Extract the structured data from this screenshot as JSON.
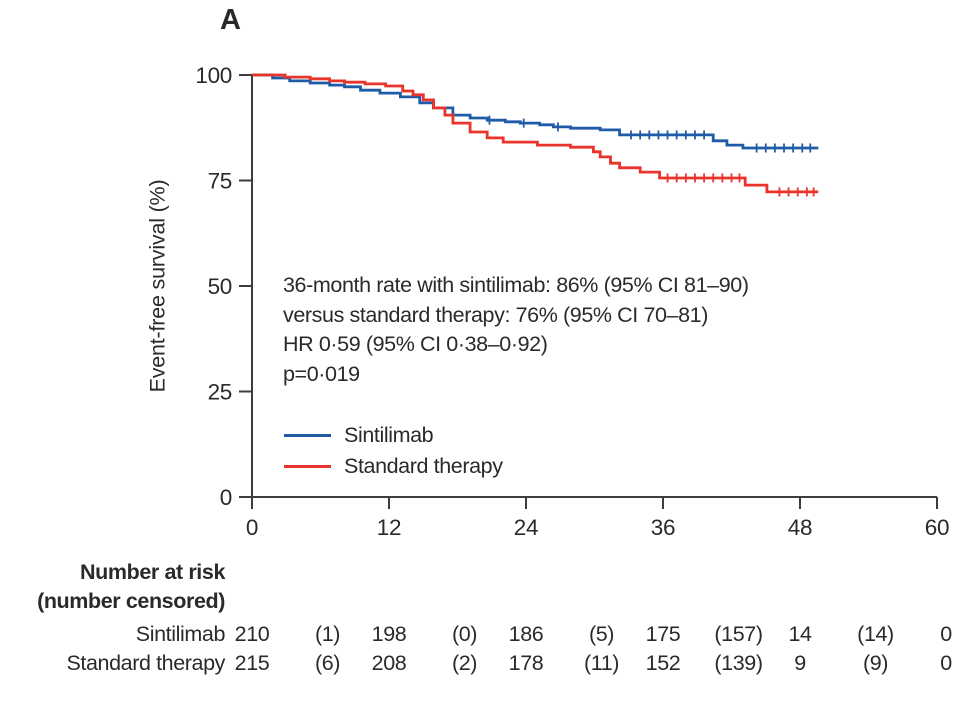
{
  "panel_label": "A",
  "colors": {
    "text": "#2b2a29",
    "axis": "#3d3d3c",
    "background": "#ffffff",
    "sintilimab_blue": "#1f5ba7",
    "standard_red": "#e8342b"
  },
  "chart_data": {
    "type": "line",
    "subtype": "kaplan-meier-step",
    "title": "A",
    "xlabel": "",
    "ylabel": "Event-free survival (%)",
    "xlim": [
      0,
      60
    ],
    "ylim": [
      0,
      100
    ],
    "xticks": [
      0,
      12,
      24,
      36,
      48,
      60
    ],
    "yticks": [
      100,
      75,
      50,
      25,
      0
    ],
    "grid": false,
    "legend_position": "inside-lower-left",
    "annotation": [
      "36-month rate with sintilimab: 86% (95% CI 81–90)",
      "versus standard therapy: 76% (95% CI 70–81)",
      "HR 0·59 (95% CI 0·38–0·92)",
      "p=0·019"
    ],
    "series": [
      {
        "name": "Sintilimab",
        "color": "#1f5ba7",
        "end_t": 49.6,
        "points": [
          [
            0,
            100
          ],
          [
            1.8,
            99.3
          ],
          [
            3.3,
            98.6
          ],
          [
            5.1,
            98.1
          ],
          [
            6.8,
            97.6
          ],
          [
            8.1,
            97.2
          ],
          [
            9.5,
            96.4
          ],
          [
            11.2,
            95.7
          ],
          [
            13,
            94.8
          ],
          [
            14.7,
            93.4
          ],
          [
            15.9,
            92.2
          ],
          [
            17.6,
            90.5
          ],
          [
            19.1,
            89.8
          ],
          [
            20.6,
            89.3
          ],
          [
            22.2,
            88.9
          ],
          [
            23.5,
            88.6
          ],
          [
            25.2,
            88.2
          ],
          [
            26.4,
            87.7
          ],
          [
            27.9,
            87.4
          ],
          [
            30.5,
            87
          ],
          [
            32.2,
            85.8
          ],
          [
            40.4,
            84.4
          ],
          [
            41.6,
            83.4
          ],
          [
            43,
            82.7
          ]
        ],
        "censor_ticks": [
          20.8,
          23.8,
          26.8,
          33.2,
          34,
          34.8,
          35.6,
          36.4,
          37.2,
          38,
          38.8,
          39.6,
          44.2,
          45,
          45.8,
          46.6,
          47.4,
          48.2,
          48.9
        ]
      },
      {
        "name": "Standard therapy",
        "color": "#e8342b",
        "end_t": 49.6,
        "points": [
          [
            0,
            100
          ],
          [
            2.9,
            99.5
          ],
          [
            5.1,
            99.1
          ],
          [
            6.8,
            98.6
          ],
          [
            8.1,
            98.3
          ],
          [
            9.9,
            97.9
          ],
          [
            11.7,
            97.4
          ],
          [
            13.2,
            96.2
          ],
          [
            14.1,
            95.3
          ],
          [
            15,
            94.1
          ],
          [
            15.9,
            92.2
          ],
          [
            16.9,
            90.5
          ],
          [
            17.6,
            88.6
          ],
          [
            19.1,
            86.5
          ],
          [
            20.6,
            85.1
          ],
          [
            22,
            84.1
          ],
          [
            25,
            83.4
          ],
          [
            27.9,
            82.9
          ],
          [
            29.9,
            81.8
          ],
          [
            30.5,
            80.6
          ],
          [
            31.4,
            79.1
          ],
          [
            32.2,
            78
          ],
          [
            34,
            77
          ],
          [
            35.7,
            75.6
          ],
          [
            43.2,
            73.9
          ],
          [
            45.1,
            72.3
          ]
        ],
        "censor_ticks": [
          36.4,
          37.2,
          38,
          38.8,
          39.6,
          40.4,
          41.2,
          42,
          42.7,
          46.2,
          47,
          47.8,
          48.6,
          49.2
        ]
      }
    ]
  },
  "risk_table": {
    "title": "Number at risk",
    "subtitle": "(number censored)",
    "column_times": [
      0,
      6,
      12,
      18,
      24,
      30,
      36,
      42,
      48,
      54,
      60
    ],
    "rows": [
      {
        "label": "Sintilimab",
        "values": [
          "210",
          "(1)",
          "198",
          "(0)",
          "186",
          "(5)",
          "175",
          "(157)",
          "14",
          "(14)",
          "0"
        ]
      },
      {
        "label": "Standard therapy",
        "values": [
          "215",
          "(6)",
          "208",
          "(2)",
          "178",
          "(11)",
          "152",
          "(139)",
          "9",
          "(9)",
          "0"
        ]
      }
    ]
  }
}
